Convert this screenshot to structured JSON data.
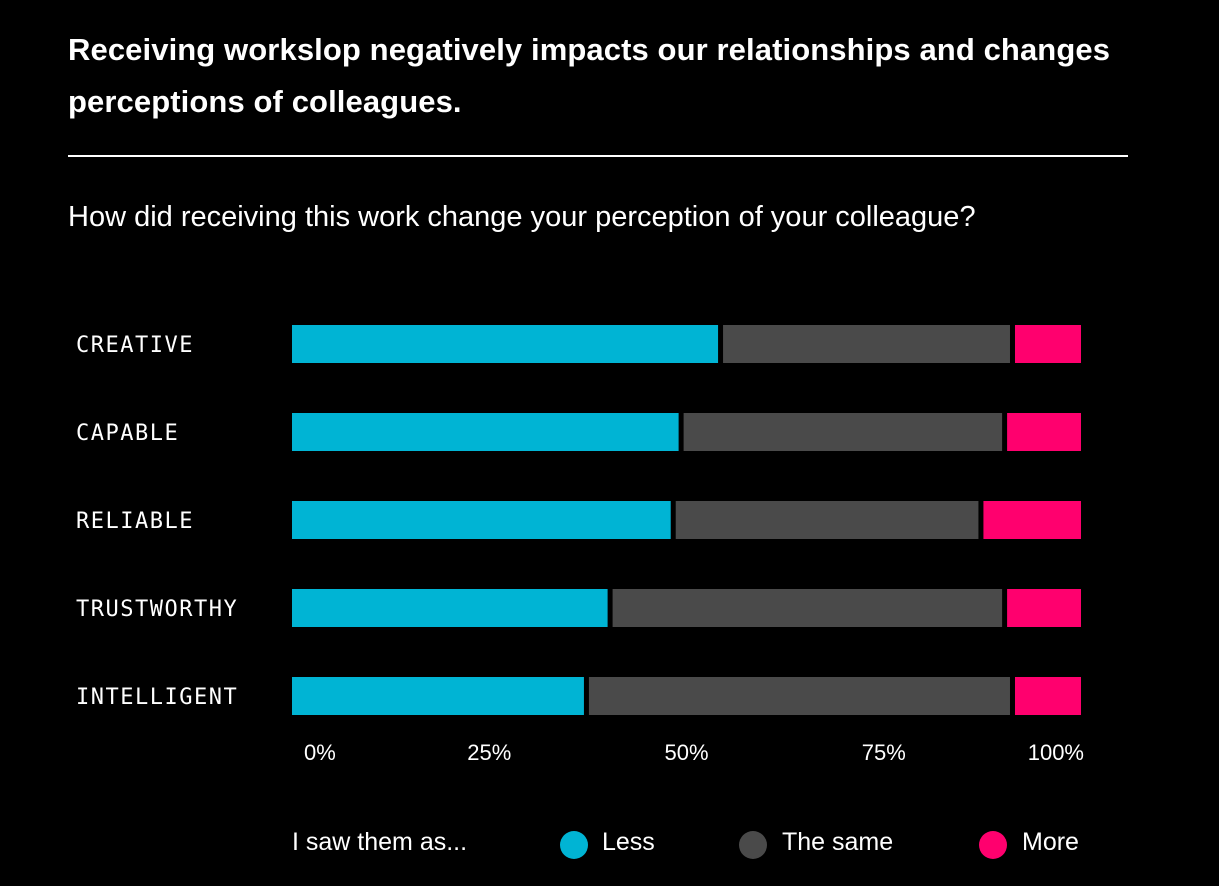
{
  "title": "Receiving workslop negatively impacts our relationships and changes perceptions of colleagues.",
  "subtitle": "How did receiving this work change your perception of your colleague?",
  "chart_data": {
    "type": "bar",
    "orientation": "horizontal",
    "stacked": true,
    "categories": [
      "CREATIVE",
      "CAPABLE",
      "RELIABLE",
      "TRUSTWORTHY",
      "INTELLIGENT"
    ],
    "series": [
      {
        "name": "Less",
        "color": "#00b4d4",
        "values": [
          54,
          49,
          48,
          40,
          37
        ]
      },
      {
        "name": "The same",
        "color": "#4a4a4a",
        "values": [
          37,
          41,
          39,
          50,
          54
        ]
      },
      {
        "name": "More",
        "color": "#ff006e",
        "values": [
          9,
          10,
          13,
          10,
          9
        ]
      }
    ],
    "xlim": [
      0,
      100
    ],
    "xticks": [
      "0%",
      "25%",
      "50%",
      "75%",
      "100%"
    ],
    "grid": false,
    "legend": {
      "title": "I saw them as...",
      "position": "bottom"
    }
  }
}
